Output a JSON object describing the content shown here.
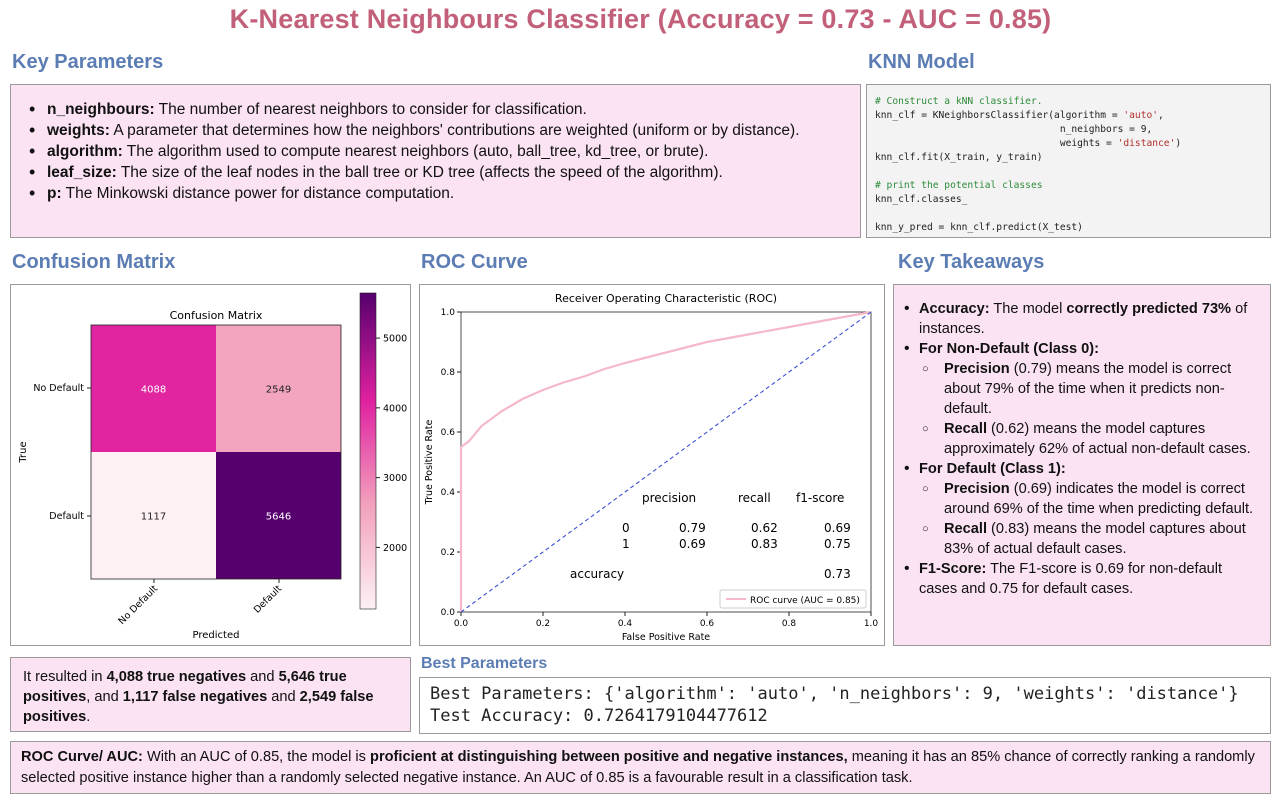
{
  "title": "K-Nearest Neighbours Classifier (Accuracy = 0.73 - AUC = 0.85)",
  "key_parameters": {
    "heading": "Key Parameters",
    "items": [
      {
        "term": "n_neighbours:",
        "text": " The number of nearest neighbors to consider for classification."
      },
      {
        "term": "weights:",
        "text": " A parameter that determines how the neighbors' contributions are weighted (uniform or by distance)."
      },
      {
        "term": "algorithm:",
        "text": " The algorithm used to compute nearest neighbors (auto, ball_tree, kd_tree, or brute)."
      },
      {
        "term": "leaf_size:",
        "text": " The size of the leaf nodes in the ball tree or KD tree (affects the speed of the algorithm)."
      },
      {
        "term": "p:",
        "text": " The Minkowski distance power for distance computation."
      }
    ]
  },
  "knn_model": {
    "heading": "KNN Model",
    "code": {
      "l1": "# Construct a kNN classifier.",
      "l2a": "knn_clf = KNeighborsClassifier(algorithm = ",
      "l2b": "'auto'",
      "l2c": ",",
      "l3": "                                n_neighbors = 9,",
      "l4a": "                                weights = ",
      "l4b": "'distance'",
      "l4c": ")",
      "l5": "knn_clf.fit(X_train, y_train)",
      "l6": "# print the potential classes",
      "l7": "knn_clf.classes_",
      "l8": "knn_y_pred = knn_clf.predict(X_test)"
    }
  },
  "confusion_matrix": {
    "heading": "Confusion Matrix",
    "title": "Confusion Matrix",
    "xlabel": "Predicted",
    "ylabel": "True",
    "x_ticks": [
      "No Default",
      "Default"
    ],
    "y_ticks": [
      "No Default",
      "Default"
    ],
    "colorbar_ticks": [
      "5000",
      "4000",
      "3000",
      "2000"
    ]
  },
  "roc": {
    "heading": "ROC Curve",
    "title": "Receiver Operating Characteristic (ROC)",
    "xlabel": "False Positive Rate",
    "ylabel": "True Positive Rate",
    "x_ticks": [
      "0.0",
      "0.2",
      "0.4",
      "0.6",
      "0.8",
      "1.0"
    ],
    "y_ticks": [
      "0.0",
      "0.2",
      "0.4",
      "0.6",
      "0.8",
      "1.0"
    ],
    "legend": "ROC curve (AUC = 0.85)",
    "report": {
      "h_precision": "precision",
      "h_recall": "recall",
      "h_f1": "f1-score",
      "r0": [
        "0",
        "0.79",
        "0.62",
        "0.69"
      ],
      "r1": [
        "1",
        "0.69",
        "0.83",
        "0.75"
      ],
      "acc_label": "accuracy",
      "acc_value": "0.73"
    }
  },
  "chart_data": [
    {
      "type": "heatmap",
      "title": "Confusion Matrix",
      "xlabel": "Predicted",
      "ylabel": "True",
      "x_categories": [
        "No Default",
        "Default"
      ],
      "y_categories": [
        "No Default",
        "Default"
      ],
      "values": [
        [
          4088,
          2549
        ],
        [
          1117,
          5646
        ]
      ],
      "colorbar_range": [
        1117,
        5646
      ],
      "colormap": [
        "#fdf1f4",
        "#f2a1bd",
        "#e021a0",
        "#56006e"
      ]
    },
    {
      "type": "line",
      "title": "Receiver Operating Characteristic (ROC)",
      "xlabel": "False Positive Rate",
      "ylabel": "True Positive Rate",
      "xlim": [
        0,
        1
      ],
      "ylim": [
        0,
        1
      ],
      "series": [
        {
          "name": "ROC curve (AUC = 0.85)",
          "color": "#f5b8c8",
          "x": [
            0.0,
            0.0,
            0.01,
            0.02,
            0.05,
            0.1,
            0.15,
            0.2,
            0.25,
            0.3,
            0.35,
            0.4,
            0.5,
            0.6,
            0.7,
            0.8,
            0.9,
            1.0
          ],
          "y": [
            0.0,
            0.55,
            0.56,
            0.57,
            0.62,
            0.67,
            0.71,
            0.74,
            0.765,
            0.785,
            0.81,
            0.83,
            0.865,
            0.9,
            0.925,
            0.95,
            0.975,
            1.0
          ]
        },
        {
          "name": "",
          "color": "#3b4fd6",
          "dashed": true,
          "x": [
            0,
            1
          ],
          "y": [
            0,
            1
          ]
        }
      ]
    }
  ],
  "key_takeaways": {
    "heading": "Key Takeaways",
    "accuracy_term": "Accuracy:",
    "accuracy_text1": " The model ",
    "accuracy_bold": "correctly predicted  73%",
    "accuracy_text2": " of instances.",
    "nondefault_head": "For Non-Default (Class 0):",
    "nd_prec_term": "Precision",
    "nd_prec_text": " (0.79) means the model is correct about 79% of the time when it predicts non-default.",
    "nd_rec_term": "Recall",
    "nd_rec_text": " (0.62) means the model captures approximately 62% of actual non-default cases.",
    "default_head": "For Default (Class 1):",
    "d_prec_term": "Precision",
    "d_prec_text": " (0.69) indicates the model is correct around 69% of the time when predicting default.",
    "d_rec_term": "Recall",
    "d_rec_text": " (0.83) means the model captures about 83% of actual default cases.",
    "f1_term": "F1-Score:",
    "f1_text": " The F1-score is 0.69 for non-default cases and 0.75 for default cases."
  },
  "results": {
    "t1": "It resulted in ",
    "b1": "4,088 true negatives",
    "t2": " and ",
    "b2": "5,646 true positives",
    "t3": ", and ",
    "b3": "1,117 false negatives",
    "t4": " and ",
    "b4": "2,549 false positives",
    "t5": "."
  },
  "best_parameters": {
    "heading": "Best Parameters",
    "line1": "Best Parameters: {'algorithm': 'auto', 'n_neighbors': 9, 'weights': 'distance'}",
    "line2": "Test Accuracy: 0.7264179104477612"
  },
  "auc_summary": {
    "term": "ROC Curve/ AUC:",
    "t1": " With an AUC of 0.85, the model is ",
    "bold": "proficient at distinguishing between positive and negative instances,",
    "t2": " meaning it has an 85% chance of correctly ranking a randomly selected positive instance higher than a randomly selected negative instance. An AUC of 0.85 is a favourable result in a classification task."
  }
}
